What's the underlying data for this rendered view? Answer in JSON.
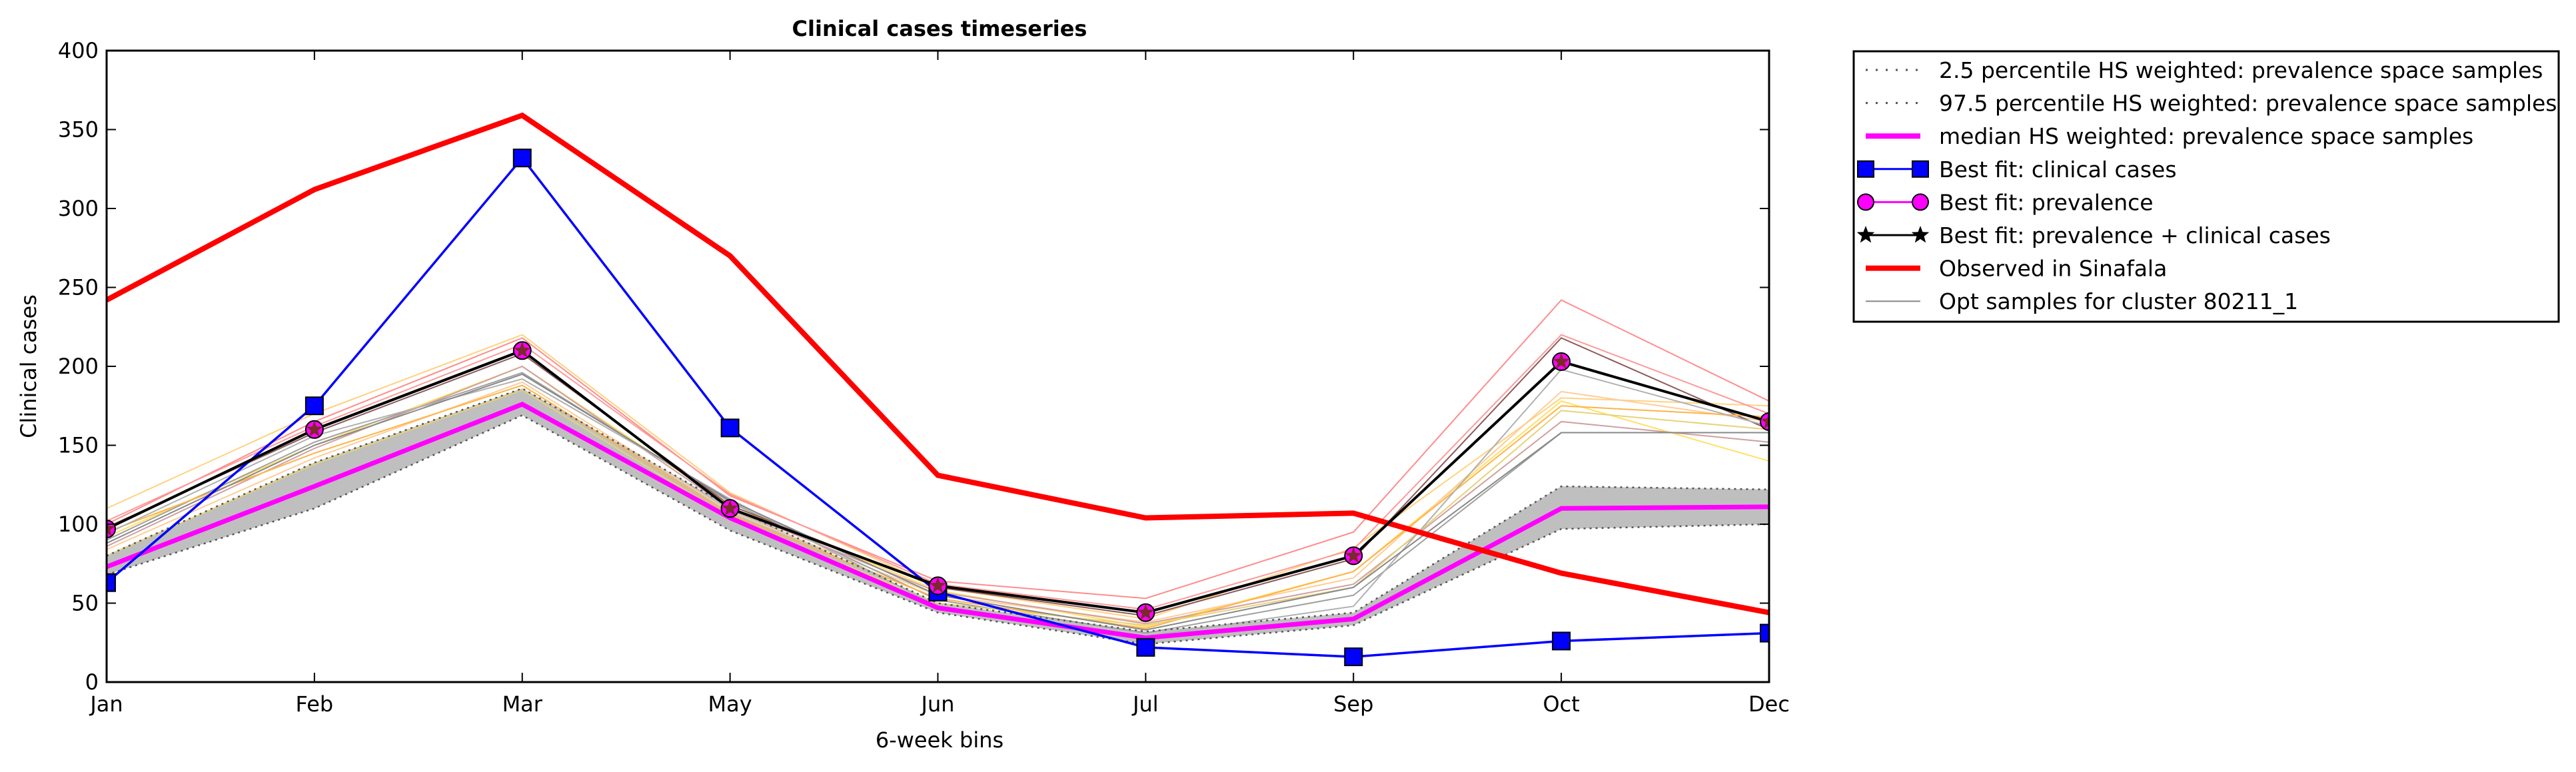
{
  "chart_data": {
    "type": "line",
    "title": "Clinical cases timeseries",
    "xlabel": "6-week bins",
    "ylabel": "Clinical cases",
    "categories": [
      "Jan",
      "Feb",
      "Mar",
      "May",
      "Jun",
      "Jul",
      "Sep",
      "Oct",
      "Dec"
    ],
    "yticks": [
      0,
      50,
      100,
      150,
      200,
      250,
      300,
      350,
      400
    ],
    "ylim": [
      0,
      400
    ],
    "grid": false,
    "legend_position": "outside-right",
    "band": {
      "lower": [
        68,
        110,
        169,
        96,
        44,
        24,
        36,
        97,
        100
      ],
      "upper": [
        80,
        139,
        186,
        111,
        50,
        32,
        44,
        124,
        122
      ],
      "color": "#bfbfbf"
    },
    "series": [
      {
        "name": "2.5 percentile HS weighted: prevalence space samples",
        "style": "dotted",
        "color": "#555555",
        "values": [
          68,
          110,
          169,
          96,
          44,
          24,
          36,
          97,
          100
        ]
      },
      {
        "name": "97.5 percentile HS weighted: prevalence space samples",
        "style": "dotted",
        "color": "#555555",
        "values": [
          80,
          139,
          186,
          111,
          50,
          32,
          44,
          124,
          122
        ]
      },
      {
        "name": "median HS weighted: prevalence space samples",
        "style": "solid-thick",
        "color": "#ff00ff",
        "values": [
          73,
          124,
          176,
          104,
          47,
          28,
          40,
          110,
          111
        ]
      },
      {
        "name": "Best fit: clinical cases",
        "style": "line-square",
        "color": "#0000ff",
        "values": [
          63,
          175,
          332,
          161,
          57,
          22,
          16,
          26,
          31
        ]
      },
      {
        "name": "Best fit: prevalence",
        "style": "line-circle",
        "color": "#ff00ff",
        "values": [
          97,
          160,
          210,
          110,
          61,
          44,
          80,
          203,
          165
        ]
      },
      {
        "name": "Best fit: prevalence + clinical cases",
        "style": "line-star",
        "color": "#000000",
        "values": [
          97,
          160,
          210,
          110,
          61,
          44,
          80,
          203,
          165
        ]
      },
      {
        "name": "Observed in Sinafala",
        "style": "solid-thick",
        "color": "#ff0000",
        "values": [
          242,
          312,
          359,
          270,
          131,
          104,
          107,
          69,
          44
        ]
      },
      {
        "name": "Opt samples for cluster 80211_1",
        "style": "thin",
        "color": "#888888",
        "values": [
          88,
          150,
          195,
          115,
          55,
          33,
          60,
          158,
          158
        ]
      }
    ],
    "opt_samples": [
      {
        "color": "#ff8c8c",
        "values": [
          100,
          165,
          218,
          118,
          64,
          53,
          95,
          242,
          178
        ]
      },
      {
        "color": "#ffd27f",
        "values": [
          110,
          170,
          220,
          120,
          60,
          40,
          85,
          180,
          175
        ]
      },
      {
        "color": "#ffe066",
        "values": [
          92,
          150,
          200,
          112,
          58,
          35,
          70,
          178,
          140
        ]
      },
      {
        "color": "#ffcc99",
        "values": [
          84,
          142,
          190,
          108,
          55,
          38,
          66,
          184,
          165
        ]
      },
      {
        "color": "#a0a0a0",
        "values": [
          90,
          152,
          196,
          114,
          52,
          31,
          55,
          158,
          158
        ]
      },
      {
        "color": "#8c5a5a",
        "values": [
          98,
          158,
          208,
          112,
          60,
          42,
          78,
          218,
          160
        ]
      },
      {
        "color": "#cfa0a0",
        "values": [
          86,
          148,
          200,
          110,
          57,
          37,
          62,
          165,
          152
        ]
      },
      {
        "color": "#ffb347",
        "values": [
          95,
          145,
          188,
          106,
          53,
          34,
          70,
          175,
          168
        ]
      },
      {
        "color": "#e6d27a",
        "values": [
          80,
          138,
          185,
          104,
          50,
          36,
          60,
          172,
          160
        ]
      },
      {
        "color": "#b0b0b0",
        "values": [
          94,
          156,
          192,
          116,
          48,
          29,
          48,
          198,
          162
        ]
      },
      {
        "color": "#ff9999",
        "values": [
          102,
          162,
          214,
          119,
          62,
          46,
          84,
          220,
          170
        ]
      }
    ]
  }
}
